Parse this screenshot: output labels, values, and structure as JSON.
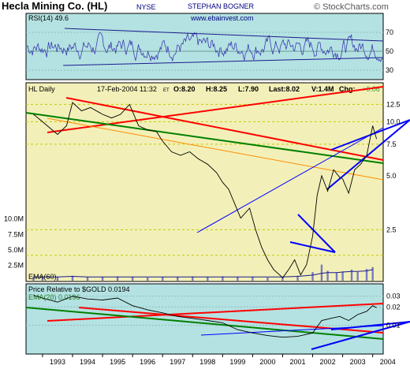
{
  "header": {
    "title": "Hecla Mining Co. (HL)",
    "exchange": "NYSE",
    "author": "STEPHAN BOGNER",
    "website": "www.ebainvest.com",
    "copyright": "© StockCharts.com"
  },
  "chart_data": [
    {
      "id": "rsi",
      "type": "line",
      "label": "RSI(14) 49.6",
      "ylim": [
        20,
        90
      ],
      "y_ticks": [
        "70",
        "50",
        "30"
      ],
      "y_tick_values": [
        70,
        50,
        30
      ],
      "value_last": 49.6,
      "color": "#4a4ab8",
      "background": "#b4e2e2"
    },
    {
      "id": "price",
      "type": "line",
      "label": "HL Daily",
      "quote": {
        "date": "17-Feb-2004 11:32",
        "tz": "ET",
        "open": "O:8.20",
        "high": "H:8.25",
        "low": "L:7.90",
        "last": "Last:8.02",
        "volume": "V:1.4M",
        "change_label": "Chg:",
        "change": "+0.06"
      },
      "scale": "log",
      "ylim": [
        1.3,
        16
      ],
      "y_ticks": [
        "12.5",
        "10.0",
        "7.5",
        "5.0",
        "2.5"
      ],
      "y_tick_values": [
        12.5,
        10.0,
        7.5,
        5.0,
        2.5
      ],
      "x": [
        1992.7,
        1993.0,
        1993.5,
        1993.8,
        1994.0,
        1994.3,
        1994.6,
        1995.0,
        1995.3,
        1995.6,
        1995.9,
        1996.2,
        1996.5,
        1996.8,
        1997.0,
        1997.3,
        1997.6,
        1997.9,
        1998.2,
        1998.5,
        1998.8,
        1999.0,
        1999.2,
        1999.4,
        1999.6,
        1999.9,
        2000.1,
        2000.3,
        2000.5,
        2000.7,
        2000.9,
        2001.0,
        2001.2,
        2001.4,
        2001.6,
        2001.8,
        2002.0,
        2002.15,
        2002.3,
        2002.5,
        2002.7,
        2002.9,
        2003.0,
        2003.2,
        2003.4,
        2003.6,
        2003.8,
        2004.0,
        2004.13
      ],
      "values": [
        11.0,
        10.0,
        8.5,
        9.5,
        12.8,
        11.5,
        12.0,
        11.0,
        10.5,
        11.0,
        12.5,
        9.5,
        9.0,
        8.8,
        7.8,
        6.8,
        6.5,
        6.8,
        6.2,
        5.8,
        5.2,
        4.6,
        4.2,
        3.5,
        2.9,
        3.3,
        2.5,
        2.0,
        1.7,
        1.5,
        1.4,
        1.35,
        1.5,
        1.7,
        1.4,
        1.6,
        2.3,
        3.9,
        5.0,
        4.1,
        5.4,
        4.9,
        4.8,
        4.0,
        5.4,
        5.8,
        6.5,
        9.5,
        8.02
      ],
      "color": "#000000",
      "background": "#f2f0b8",
      "hlines": [
        12.5,
        10.0,
        7.5,
        2.5,
        1.8
      ]
    },
    {
      "id": "volume",
      "type": "bar",
      "y_ticks": [
        "10.0M",
        "7.5M",
        "5.0M",
        "2.5M"
      ],
      "y_tick_values": [
        10.0,
        7.5,
        5.0,
        2.5
      ],
      "ylim": [
        0,
        12
      ],
      "label": "EMA(60)",
      "x": [
        1992.7,
        1993.0,
        1993.5,
        1994.0,
        1994.5,
        1995.0,
        1995.5,
        1996.0,
        1996.5,
        1997.0,
        1997.5,
        1998.0,
        1998.5,
        1999.0,
        1999.5,
        2000.0,
        2000.5,
        2001.0,
        2001.5,
        2002.0,
        2002.3,
        2002.5,
        2002.8,
        2003.0,
        2003.3,
        2003.5,
        2003.8,
        2004.0
      ],
      "values": [
        0.6,
        0.7,
        0.6,
        0.8,
        0.6,
        0.6,
        0.7,
        0.6,
        0.5,
        0.6,
        0.6,
        0.7,
        0.6,
        0.7,
        0.6,
        0.6,
        0.5,
        0.6,
        0.8,
        1.4,
        2.6,
        1.6,
        1.3,
        1.5,
        1.8,
        1.4,
        1.9,
        2.2
      ],
      "ema": [
        0.6,
        0.6,
        0.6,
        0.7,
        0.6,
        0.6,
        0.6,
        0.6,
        0.6,
        0.6,
        0.6,
        0.6,
        0.6,
        0.6,
        0.6,
        0.6,
        0.6,
        0.6,
        0.7,
        0.9,
        1.2,
        1.3,
        1.3,
        1.4,
        1.5,
        1.5,
        1.6,
        1.8
      ],
      "color": "#7a7ac0"
    },
    {
      "id": "relative",
      "type": "line",
      "label": "Price Relative to $GOLD 0.0194",
      "label2": "EMA(20) 0.0196",
      "scale": "log",
      "ylim": [
        0.0035,
        0.045
      ],
      "y_ticks": [
        "0.03",
        "0.02",
        "0.01"
      ],
      "y_tick_values": [
        0.03,
        0.02,
        0.01
      ],
      "x": [
        1992.7,
        1993.0,
        1993.5,
        1994.0,
        1994.5,
        1995.0,
        1995.5,
        1996.0,
        1996.5,
        1997.0,
        1997.5,
        1998.0,
        1998.5,
        1999.0,
        1999.5,
        2000.0,
        2000.5,
        2001.0,
        2001.5,
        2002.0,
        2002.3,
        2002.6,
        2002.9,
        2003.2,
        2003.5,
        2003.8,
        2004.0,
        2004.13
      ],
      "values": [
        0.031,
        0.028,
        0.024,
        0.03,
        0.027,
        0.026,
        0.028,
        0.021,
        0.018,
        0.016,
        0.014,
        0.013,
        0.012,
        0.011,
        0.0085,
        0.0075,
        0.0068,
        0.0064,
        0.0066,
        0.0075,
        0.012,
        0.013,
        0.014,
        0.012,
        0.015,
        0.017,
        0.021,
        0.0194
      ],
      "color": "#000000",
      "background": "#b4e2e2"
    }
  ],
  "x_axis": {
    "labels": [
      "1993",
      "1994",
      "1995",
      "1996",
      "1997",
      "1998",
      "1999",
      "2000",
      "2001",
      "2002",
      "2003",
      "2004"
    ],
    "years": [
      1993,
      1994,
      1995,
      1996,
      1997,
      1998,
      1999,
      2000,
      2001,
      2002,
      2003,
      2004
    ],
    "range": [
      1992.45,
      2004.35
    ]
  }
}
